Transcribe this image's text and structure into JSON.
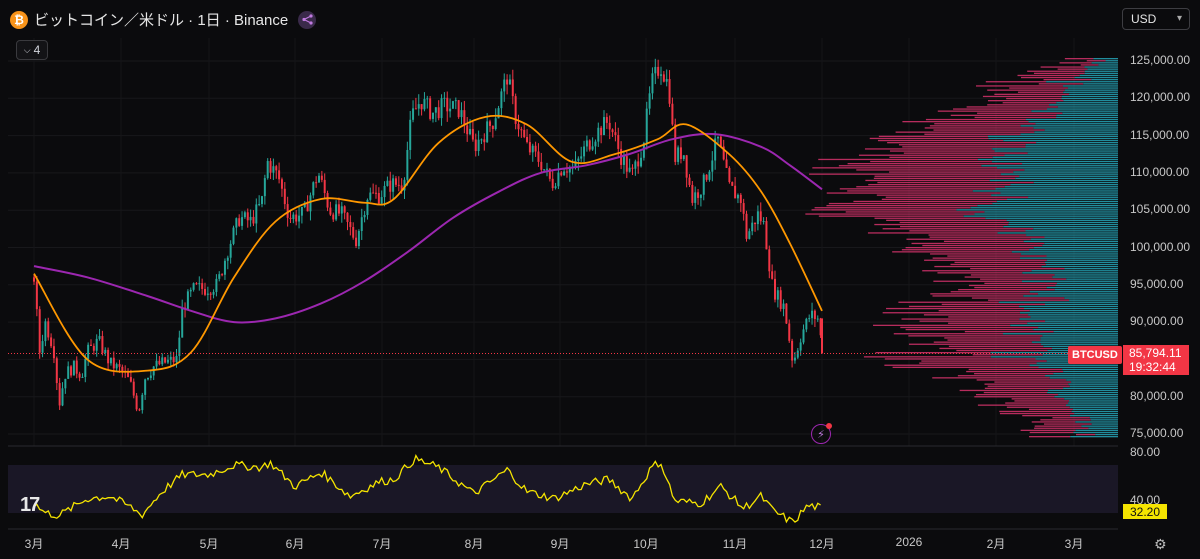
{
  "header": {
    "coin_icon": "bitcoin-icon",
    "symbol_title": "ビットコイン／米ドル · 1日 · Binance",
    "share_icon": "share-icon",
    "indicator_count": "4"
  },
  "currency_select": {
    "value": "USD",
    "icon": "chevron-down-icon"
  },
  "price_tags": {
    "symbol": "BTCUSD",
    "last_price": "85,794.11",
    "countdown": "19:32:44",
    "rsi_value": "32.20"
  },
  "colors": {
    "up": "#26a69a",
    "down": "#f23645",
    "ma_fast": "#ff9800",
    "ma_slow": "#9c27b0",
    "rsi": "#f5e400",
    "vp_up": "#26a6b8",
    "vp_down": "#d6336c"
  },
  "chart_data": {
    "type": "candlestick",
    "price_axis": {
      "ticks": [
        "125,000.00",
        "120,000.00",
        "115,000.00",
        "110,000.00",
        "105,000.00",
        "100,000.00",
        "95,000.00",
        "90,000.00",
        "85,000.00",
        "80,000.00",
        "75,000.00"
      ],
      "ylim": [
        74000,
        126500
      ]
    },
    "rsi_axis": {
      "ticks": [
        "80.00",
        "40.00"
      ],
      "band": [
        30,
        70
      ]
    },
    "x_axis": {
      "ticks": [
        "3月",
        "4月",
        "5月",
        "6月",
        "7月",
        "8月",
        "9月",
        "10月",
        "11月",
        "12月",
        "2026",
        "2月",
        "3月"
      ]
    },
    "close_path": [
      [
        "03-01",
        96000
      ],
      [
        "03-03",
        86000
      ],
      [
        "03-05",
        90000
      ],
      [
        "03-08",
        86500
      ],
      [
        "03-10",
        79000
      ],
      [
        "03-12",
        83000
      ],
      [
        "03-15",
        84000
      ],
      [
        "03-18",
        83000
      ],
      [
        "03-20",
        86000
      ],
      [
        "03-24",
        87500
      ],
      [
        "03-28",
        84500
      ],
      [
        "04-01",
        83500
      ],
      [
        "04-04",
        82000
      ],
      [
        "04-07",
        78000
      ],
      [
        "04-09",
        82500
      ],
      [
        "04-12",
        84000
      ],
      [
        "04-15",
        84500
      ],
      [
        "04-20",
        85000
      ],
      [
        "04-22",
        92000
      ],
      [
        "04-26",
        94500
      ],
      [
        "04-30",
        94500
      ],
      [
        "05-04",
        95000
      ],
      [
        "05-08",
        100000
      ],
      [
        "05-12",
        104000
      ],
      [
        "05-16",
        103500
      ],
      [
        "05-20",
        106000
      ],
      [
        "05-22",
        111500
      ],
      [
        "05-26",
        109500
      ],
      [
        "05-30",
        104000
      ],
      [
        "06-04",
        104500
      ],
      [
        "06-09",
        110000
      ],
      [
        "06-13",
        105000
      ],
      [
        "06-17",
        104500
      ],
      [
        "06-22",
        101000
      ],
      [
        "06-26",
        107000
      ],
      [
        "06-30",
        107000
      ],
      [
        "07-04",
        108500
      ],
      [
        "07-08",
        108500
      ],
      [
        "07-11",
        117500
      ],
      [
        "07-14",
        119800
      ],
      [
        "07-18",
        118000
      ],
      [
        "07-22",
        119000
      ],
      [
        "07-27",
        118500
      ],
      [
        "08-01",
        113500
      ],
      [
        "08-03",
        114500
      ],
      [
        "08-08",
        117000
      ],
      [
        "08-13",
        123000
      ],
      [
        "08-16",
        117500
      ],
      [
        "08-20",
        113500
      ],
      [
        "08-25",
        111500
      ],
      [
        "08-29",
        108500
      ],
      [
        "09-02",
        111000
      ],
      [
        "09-06",
        110500
      ],
      [
        "09-10",
        113500
      ],
      [
        "09-14",
        115500
      ],
      [
        "09-18",
        117000
      ],
      [
        "09-22",
        112500
      ],
      [
        "09-26",
        109500
      ],
      [
        "09-30",
        114000
      ],
      [
        "10-03",
        122000
      ],
      [
        "10-06",
        124500
      ],
      [
        "10-09",
        121500
      ],
      [
        "10-11",
        112000
      ],
      [
        "10-14",
        113000
      ],
      [
        "10-17",
        106500
      ],
      [
        "10-21",
        108500
      ],
      [
        "10-26",
        114500
      ],
      [
        "10-30",
        108000
      ],
      [
        "11-03",
        106500
      ],
      [
        "11-05",
        101500
      ],
      [
        "11-09",
        104500
      ],
      [
        "11-11",
        103000
      ],
      [
        "11-14",
        94500
      ],
      [
        "11-18",
        92000
      ],
      [
        "11-21",
        84500
      ],
      [
        "11-24",
        88500
      ],
      [
        "11-27",
        91000
      ],
      [
        "11-30",
        90400
      ],
      [
        "12-01",
        85794
      ]
    ],
    "ma_fast": [
      [
        "03-01",
        96500
      ],
      [
        "03-20",
        85000
      ],
      [
        "04-10",
        83500
      ],
      [
        "04-25",
        86000
      ],
      [
        "05-10",
        96000
      ],
      [
        "05-25",
        103500
      ],
      [
        "06-10",
        106500
      ],
      [
        "06-25",
        106000
      ],
      [
        "07-05",
        106500
      ],
      [
        "07-20",
        114000
      ],
      [
        "08-05",
        117500
      ],
      [
        "08-20",
        116500
      ],
      [
        "09-05",
        111500
      ],
      [
        "09-20",
        112500
      ],
      [
        "10-05",
        114500
      ],
      [
        "10-15",
        116500
      ],
      [
        "10-30",
        112500
      ],
      [
        "11-10",
        107500
      ],
      [
        "11-20",
        100500
      ],
      [
        "12-01",
        91500
      ]
    ],
    "ma_slow": [
      [
        "03-01",
        97500
      ],
      [
        "03-20",
        96000
      ],
      [
        "04-10",
        93500
      ],
      [
        "04-25",
        91500
      ],
      [
        "05-10",
        90000
      ],
      [
        "05-25",
        90500
      ],
      [
        "06-10",
        92500
      ],
      [
        "06-25",
        95500
      ],
      [
        "07-10",
        99500
      ],
      [
        "07-25",
        104000
      ],
      [
        "08-10",
        107500
      ],
      [
        "08-25",
        110000
      ],
      [
        "09-10",
        111000
      ],
      [
        "09-25",
        112500
      ],
      [
        "10-10",
        114500
      ],
      [
        "10-25",
        115200
      ],
      [
        "11-10",
        113500
      ],
      [
        "11-20",
        111000
      ],
      [
        "12-01",
        107800
      ]
    ],
    "last_price": 85794.11,
    "rsi": [
      [
        "03-01",
        38
      ],
      [
        "03-05",
        30
      ],
      [
        "03-10",
        28
      ],
      [
        "03-20",
        42
      ],
      [
        "03-28",
        44
      ],
      [
        "04-05",
        34
      ],
      [
        "04-08",
        28
      ],
      [
        "04-15",
        48
      ],
      [
        "04-22",
        62
      ],
      [
        "05-01",
        62
      ],
      [
        "05-10",
        70
      ],
      [
        "05-20",
        68
      ],
      [
        "05-23",
        72
      ],
      [
        "06-01",
        52
      ],
      [
        "06-10",
        64
      ],
      [
        "06-20",
        44
      ],
      [
        "06-30",
        56
      ],
      [
        "07-05",
        58
      ],
      [
        "07-12",
        75
      ],
      [
        "07-20",
        68
      ],
      [
        "08-01",
        46
      ],
      [
        "08-13",
        66
      ],
      [
        "08-20",
        48
      ],
      [
        "08-30",
        42
      ],
      [
        "09-10",
        54
      ],
      [
        "09-18",
        58
      ],
      [
        "09-26",
        42
      ],
      [
        "10-03",
        68
      ],
      [
        "10-06",
        73
      ],
      [
        "10-11",
        40
      ],
      [
        "10-20",
        38
      ],
      [
        "10-27",
        52
      ],
      [
        "11-04",
        34
      ],
      [
        "11-10",
        44
      ],
      [
        "11-14",
        32
      ],
      [
        "11-21",
        22
      ],
      [
        "11-26",
        36
      ],
      [
        "11-30",
        35
      ],
      [
        "12-01",
        32.2
      ]
    ]
  }
}
